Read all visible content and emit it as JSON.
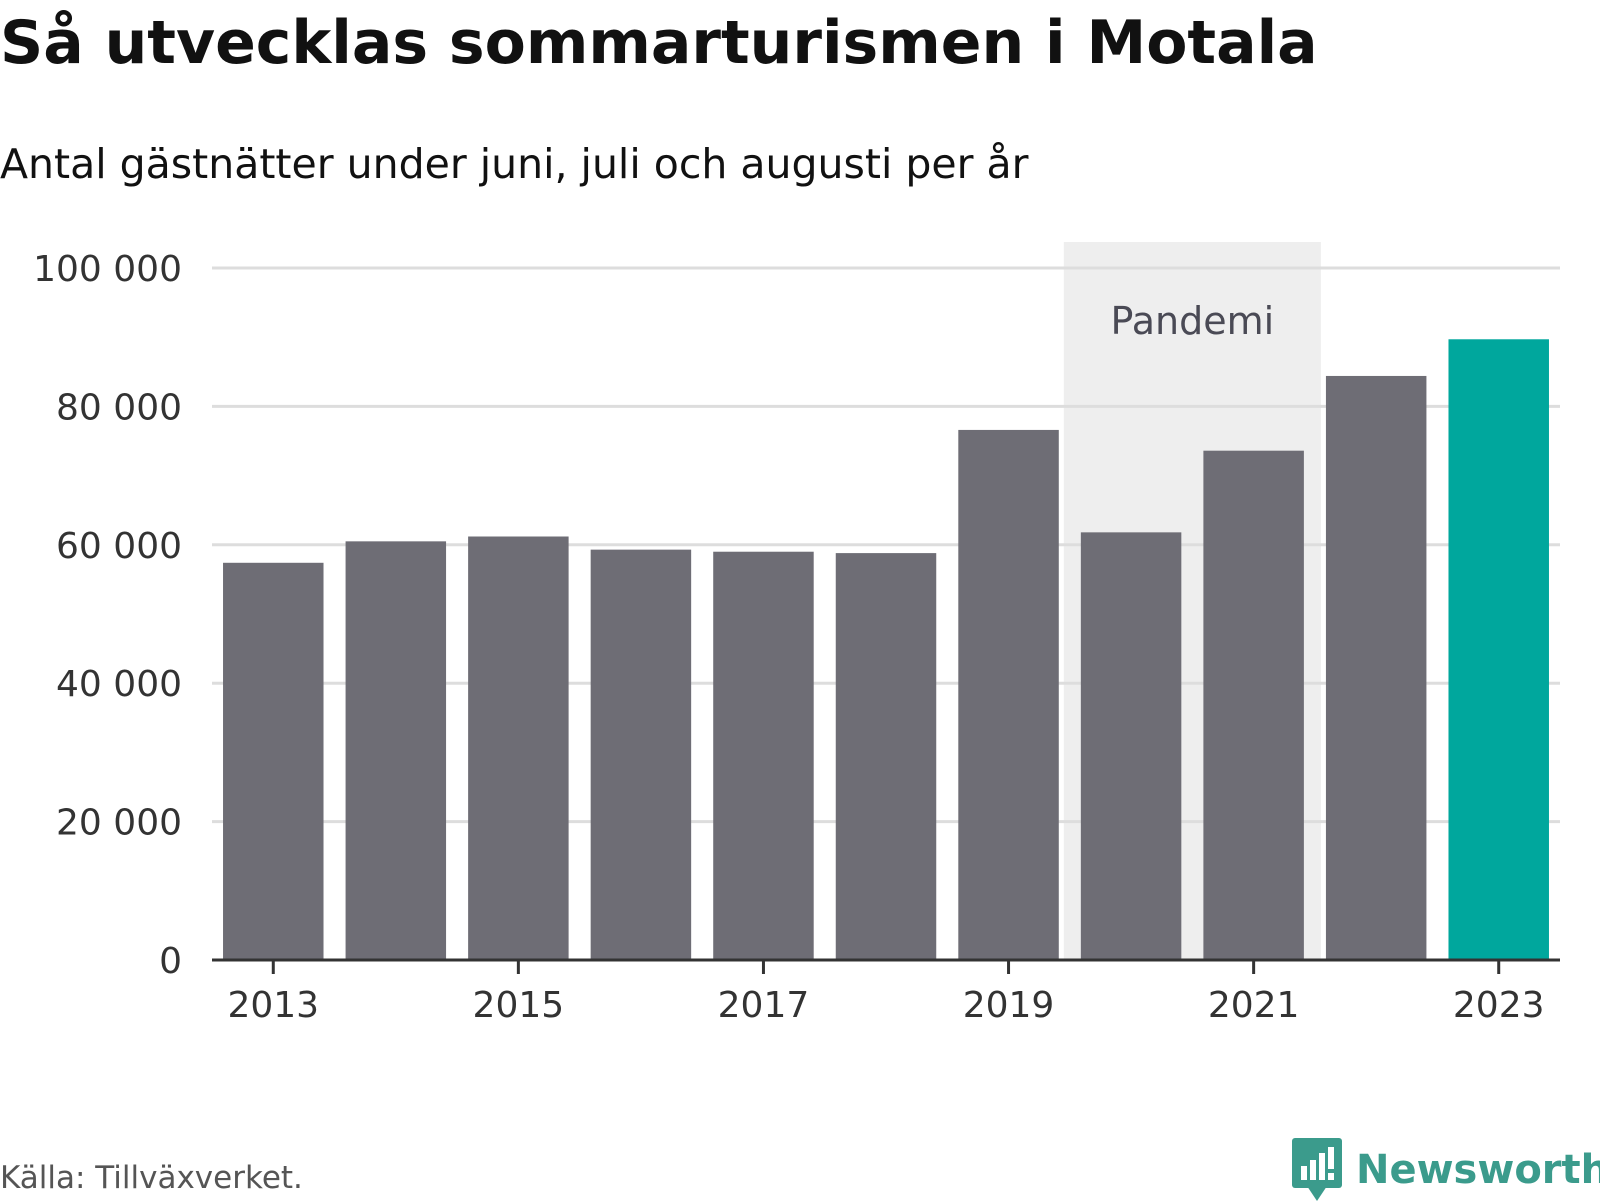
{
  "header": {
    "title": "Så utvecklas sommarturismen i Motala",
    "subtitle": "Antal gästnätter under juni, juli och augusti per år"
  },
  "chart_data": {
    "type": "bar",
    "title": "Så utvecklas sommarturismen i Motala",
    "subtitle": "Antal gästnätter under juni, juli och augusti per år",
    "xlabel": "",
    "ylabel": "",
    "categories": [
      "2013",
      "2014",
      "2015",
      "2016",
      "2017",
      "2018",
      "2019",
      "2020",
      "2021",
      "2022",
      "2023"
    ],
    "values": [
      57400,
      60500,
      61200,
      59300,
      59000,
      58800,
      76600,
      61800,
      73600,
      84400,
      89700
    ],
    "highlight_index": 10,
    "ylim": [
      0,
      100000
    ],
    "y_ticks": [
      0,
      20000,
      40000,
      60000,
      80000,
      100000
    ],
    "y_tick_labels": [
      "0",
      "20 000",
      "40 000",
      "60 000",
      "80 000",
      "100 000"
    ],
    "x_tick_labels": [
      "2013",
      "2015",
      "2017",
      "2019",
      "2021",
      "2023"
    ],
    "grid": true,
    "annotation": {
      "label": "Pandemi",
      "x_range": [
        "2020",
        "2021"
      ]
    },
    "colors": {
      "bar": "#6e6d75",
      "highlight": "#00a79d",
      "band": "#eeeeee",
      "grid": "#dddddd",
      "axis": "#333333"
    }
  },
  "footer": {
    "source": "Källa: Tillväxverket.",
    "brand": "Newsworthy"
  },
  "icons": {
    "brand_logo": "newsworthy-logo-icon",
    "brand_color": "#3b9b8c"
  }
}
